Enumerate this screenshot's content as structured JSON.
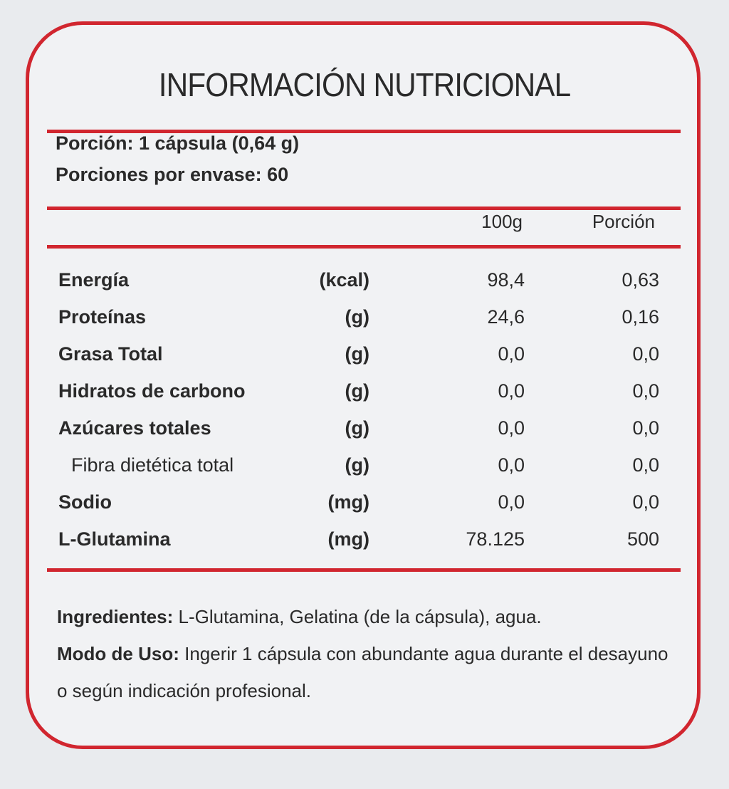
{
  "title": "INFORMACIÓN  NUTRICIONAL",
  "serving": {
    "size": "Porción: 1 cápsula (0,64 g)",
    "per_container": "Porciones por envase: 60"
  },
  "table": {
    "headers": [
      "100g",
      "Porción"
    ],
    "rows": [
      [
        "Energía",
        "(kcal)",
        "98,4",
        "0,63"
      ],
      [
        "Proteínas",
        "(g)",
        "24,6",
        "0,16"
      ],
      [
        "Grasa Total",
        "(g)",
        "0,0",
        "0,0"
      ],
      [
        "Hidratos de carbono",
        "(g)",
        "0,0",
        "0,0"
      ],
      [
        "Azúcares totales",
        "(g)",
        "0,0",
        "0,0"
      ],
      [
        "Fibra dietética total",
        "(g)",
        "0,0",
        "0,0"
      ],
      [
        "Sodio",
        "(mg)",
        "0,0",
        "0,0"
      ],
      [
        "L-Glutamina",
        "(mg)",
        "78.125",
        "500"
      ]
    ]
  },
  "ingredients": {
    "label": "Ingredientes:",
    "text": "L-Glutamina, Gelatina (de la cápsula), agua."
  },
  "usage": {
    "label": "Modo de Uso:",
    "text": "Ingerir 1 cápsula con abundante agua durante el desayuno o según indicación profesional."
  }
}
